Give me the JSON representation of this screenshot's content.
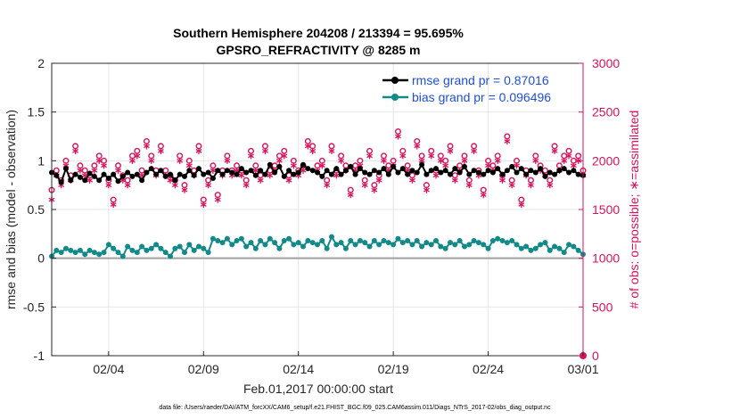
{
  "chart_data": {
    "type": "line",
    "title": "Southern Hemisphere 204208 / 213394 = 95.695%",
    "subtitle": "GPSRO_REFRACTIVITY @ 8285 m",
    "xlabel": "Feb.01,2017 00:00:00 start",
    "ylabel_left": "rmse and bias (model - observation)",
    "ylabel_right": "# of obs: o=possible; ∗=assimilated",
    "x_start_label": "02/01",
    "x_end_label": "03/01",
    "xlim_days": [
      0,
      28
    ],
    "ylim_left": [
      -1,
      2
    ],
    "ylim_right": [
      0,
      3000
    ],
    "x_tick_days": [
      3,
      8,
      13,
      18,
      23,
      28
    ],
    "x_tick_labels": [
      "02/04",
      "02/09",
      "02/14",
      "02/19",
      "02/24",
      "03/01"
    ],
    "y_left_ticks": [
      -1,
      -0.5,
      0,
      0.5,
      1,
      1.5,
      2
    ],
    "y_left_tick_labels": [
      "-1",
      "-0.5",
      "0",
      "0.5",
      "1",
      "1.5",
      "2"
    ],
    "y_right_ticks": [
      0,
      500,
      1000,
      1500,
      2000,
      2500,
      3000
    ],
    "y_right_tick_labels": [
      "0",
      "500",
      "1000",
      "1500",
      "2000",
      "2500",
      "3000"
    ],
    "grid": true,
    "legend_position": "top-right",
    "colors": {
      "rmse": "#000000",
      "bias": "#138a8a",
      "obs": "#d8125c",
      "zero_line": "#a0a0a0",
      "grid": "#e6e6e6"
    },
    "series": [
      {
        "name": "rmse grand pr = 0.87016",
        "axis": "left",
        "marker": "filled-circle",
        "x_days": [
          0,
          0.25,
          0.5,
          0.75,
          1,
          1.25,
          1.5,
          1.75,
          2,
          2.25,
          2.5,
          2.75,
          3,
          3.25,
          3.5,
          3.75,
          4,
          4.25,
          4.5,
          4.75,
          5,
          5.25,
          5.5,
          5.75,
          6,
          6.25,
          6.5,
          6.75,
          7,
          7.25,
          7.5,
          7.75,
          8,
          8.25,
          8.5,
          8.75,
          9,
          9.25,
          9.5,
          9.75,
          10,
          10.25,
          10.5,
          10.75,
          11,
          11.25,
          11.5,
          11.75,
          12,
          12.25,
          12.5,
          12.75,
          13,
          13.25,
          13.5,
          13.75,
          14,
          14.25,
          14.5,
          14.75,
          15,
          15.25,
          15.5,
          15.75,
          16,
          16.25,
          16.5,
          16.75,
          17,
          17.25,
          17.5,
          17.75,
          18,
          18.25,
          18.5,
          18.75,
          19,
          19.25,
          19.5,
          19.75,
          20,
          20.25,
          20.5,
          20.75,
          21,
          21.25,
          21.5,
          21.75,
          22,
          22.25,
          22.5,
          22.75,
          23,
          23.25,
          23.5,
          23.75,
          24,
          24.25,
          24.5,
          24.75,
          25,
          25.25,
          25.5,
          25.75,
          26,
          26.25,
          26.5,
          26.75,
          27,
          27.25,
          27.5,
          27.75,
          28
        ],
        "values": [
          0.88,
          0.85,
          0.78,
          0.92,
          0.8,
          0.86,
          0.83,
          0.8,
          0.87,
          0.84,
          0.8,
          0.86,
          0.82,
          0.86,
          0.79,
          0.84,
          0.88,
          0.84,
          0.86,
          0.8,
          0.88,
          0.92,
          0.86,
          0.9,
          0.84,
          0.86,
          0.8,
          0.86,
          0.84,
          0.9,
          0.85,
          0.92,
          0.86,
          0.88,
          0.82,
          0.9,
          0.86,
          0.9,
          0.88,
          0.86,
          0.92,
          0.88,
          0.9,
          0.85,
          0.9,
          0.86,
          0.96,
          0.88,
          0.94,
          0.84,
          0.9,
          0.86,
          0.88,
          0.96,
          0.92,
          0.9,
          0.88,
          0.84,
          0.9,
          0.86,
          0.92,
          0.86,
          0.9,
          0.94,
          0.86,
          0.92,
          0.88,
          0.86,
          0.9,
          0.88,
          0.92,
          0.86,
          0.94,
          0.88,
          0.92,
          0.86,
          0.9,
          0.88,
          0.96,
          0.86,
          0.9,
          0.92,
          0.88,
          0.9,
          0.86,
          0.92,
          0.88,
          0.94,
          0.86,
          0.9,
          0.88,
          0.86,
          0.9,
          0.88,
          0.92,
          0.86,
          0.9,
          0.94,
          0.88,
          0.92,
          0.86,
          0.9,
          0.88,
          0.92,
          0.84,
          0.88,
          0.86,
          0.9,
          0.92,
          0.88,
          0.9,
          0.86,
          0.85
        ]
      },
      {
        "name": "bias grand pr = 0.096496",
        "axis": "left",
        "marker": "filled-circle",
        "x_days": [
          0,
          0.25,
          0.5,
          0.75,
          1,
          1.25,
          1.5,
          1.75,
          2,
          2.25,
          2.5,
          2.75,
          3,
          3.25,
          3.5,
          3.75,
          4,
          4.25,
          4.5,
          4.75,
          5,
          5.25,
          5.5,
          5.75,
          6,
          6.25,
          6.5,
          6.75,
          7,
          7.25,
          7.5,
          7.75,
          8,
          8.25,
          8.5,
          8.75,
          9,
          9.25,
          9.5,
          9.75,
          10,
          10.25,
          10.5,
          10.75,
          11,
          11.25,
          11.5,
          11.75,
          12,
          12.25,
          12.5,
          12.75,
          13,
          13.25,
          13.5,
          13.75,
          14,
          14.25,
          14.5,
          14.75,
          15,
          15.25,
          15.5,
          15.75,
          16,
          16.25,
          16.5,
          16.75,
          17,
          17.25,
          17.5,
          17.75,
          18,
          18.25,
          18.5,
          18.75,
          19,
          19.25,
          19.5,
          19.75,
          20,
          20.25,
          20.5,
          20.75,
          21,
          21.25,
          21.5,
          21.75,
          22,
          22.25,
          22.5,
          22.75,
          23,
          23.25,
          23.5,
          23.75,
          24,
          24.25,
          24.5,
          24.75,
          25,
          25.25,
          25.5,
          25.75,
          26,
          26.25,
          26.5,
          26.75,
          27,
          27.25,
          27.5,
          27.75,
          28
        ],
        "values": [
          0.02,
          0.08,
          0.06,
          0.1,
          0.08,
          0.06,
          0.08,
          0.04,
          0.08,
          0.06,
          0.04,
          0.06,
          0.14,
          0.1,
          0.06,
          0.02,
          0.12,
          0.08,
          0.06,
          0.12,
          0.08,
          0.1,
          0.14,
          0.1,
          0.06,
          0.02,
          0.1,
          0.12,
          0.06,
          0.14,
          0.08,
          0.12,
          0.1,
          0.06,
          0.2,
          0.18,
          0.16,
          0.2,
          0.14,
          0.18,
          0.2,
          0.12,
          0.16,
          0.1,
          0.18,
          0.14,
          0.2,
          0.16,
          0.1,
          0.18,
          0.2,
          0.14,
          0.16,
          0.12,
          0.18,
          0.16,
          0.14,
          0.18,
          0.1,
          0.22,
          0.14,
          0.16,
          0.1,
          0.18,
          0.14,
          0.18,
          0.16,
          0.12,
          0.18,
          0.14,
          0.18,
          0.16,
          0.14,
          0.2,
          0.16,
          0.18,
          0.14,
          0.18,
          0.12,
          0.16,
          0.14,
          0.18,
          0.12,
          0.1,
          0.16,
          0.14,
          0.18,
          0.12,
          0.14,
          0.18,
          0.16,
          0.14,
          0.1,
          0.18,
          0.2,
          0.18,
          0.16,
          0.18,
          0.14,
          0.1,
          0.12,
          0.08,
          0.1,
          0.14,
          0.16,
          0.08,
          0.12,
          0.1,
          0.06,
          0.14,
          0.12,
          0.08,
          0.04
        ]
      },
      {
        "name": "possible",
        "axis": "right",
        "marker": "open-circle",
        "x_days": [
          0,
          0.25,
          0.5,
          0.75,
          1,
          1.25,
          1.5,
          1.75,
          2,
          2.25,
          2.5,
          2.75,
          3,
          3.25,
          3.5,
          3.75,
          4,
          4.25,
          4.5,
          4.75,
          5,
          5.25,
          5.5,
          5.75,
          6,
          6.25,
          6.5,
          6.75,
          7,
          7.25,
          7.5,
          7.75,
          8,
          8.25,
          8.5,
          8.75,
          9,
          9.25,
          9.5,
          9.75,
          10,
          10.25,
          10.5,
          10.75,
          11,
          11.25,
          11.5,
          11.75,
          12,
          12.25,
          12.5,
          12.75,
          13,
          13.25,
          13.5,
          13.75,
          14,
          14.25,
          14.5,
          14.75,
          15,
          15.25,
          15.5,
          15.75,
          16,
          16.25,
          16.5,
          16.75,
          17,
          17.25,
          17.5,
          17.75,
          18,
          18.25,
          18.5,
          18.75,
          19,
          19.25,
          19.5,
          19.75,
          20,
          20.25,
          20.5,
          20.75,
          21,
          21.25,
          21.5,
          21.75,
          22,
          22.25,
          22.5,
          22.75,
          23,
          23.25,
          23.5,
          23.75,
          24,
          24.25,
          24.5,
          24.75,
          25,
          25.25,
          25.5,
          25.75,
          26,
          26.25,
          26.5,
          26.75,
          27,
          27.25,
          27.5,
          27.75,
          28
        ],
        "values": [
          1700,
          1900,
          1800,
          2000,
          1850,
          2150,
          1950,
          1900,
          1850,
          1950,
          2050,
          2000,
          1800,
          1600,
          1950,
          1850,
          1800,
          2050,
          2100,
          1900,
          2200,
          2050,
          1900,
          2150,
          1900,
          1850,
          1800,
          2050,
          1750,
          2000,
          1900,
          2150,
          1600,
          1800,
          1950,
          1650,
          1900,
          2050,
          1900,
          1950,
          1900,
          1800,
          2100,
          1950,
          1850,
          2150,
          1900,
          1950,
          2050,
          2100,
          1850,
          2000,
          1900,
          1950,
          2200,
          2150,
          1950,
          2000,
          1800,
          2150,
          1900,
          2050,
          1950,
          1700,
          1950,
          2000,
          1800,
          2100,
          1750,
          1850,
          2050,
          1950,
          2000,
          2300,
          2100,
          1950,
          1850,
          2200,
          2050,
          1750,
          2100,
          1900,
          2050,
          2000,
          2150,
          1850,
          1950,
          2050,
          1800,
          2150,
          1900,
          1700,
          2000,
          1950,
          2050,
          1850,
          2250,
          1800,
          2000,
          1600,
          1900,
          1800,
          2050,
          1950,
          1900,
          1800,
          2150,
          1950,
          2050,
          2100,
          2000,
          2050,
          1900
        ]
      },
      {
        "name": "assimilated",
        "axis": "right",
        "marker": "asterisk",
        "x_days": [
          0,
          0.25,
          0.5,
          0.75,
          1,
          1.25,
          1.5,
          1.75,
          2,
          2.25,
          2.5,
          2.75,
          3,
          3.25,
          3.5,
          3.75,
          4,
          4.25,
          4.5,
          4.75,
          5,
          5.25,
          5.5,
          5.75,
          6,
          6.25,
          6.5,
          6.75,
          7,
          7.25,
          7.5,
          7.75,
          8,
          8.25,
          8.5,
          8.75,
          9,
          9.25,
          9.5,
          9.75,
          10,
          10.25,
          10.5,
          10.75,
          11,
          11.25,
          11.5,
          11.75,
          12,
          12.25,
          12.5,
          12.75,
          13,
          13.25,
          13.5,
          13.75,
          14,
          14.25,
          14.5,
          14.75,
          15,
          15.25,
          15.5,
          15.75,
          16,
          16.25,
          16.5,
          16.75,
          17,
          17.25,
          17.5,
          17.75,
          18,
          18.25,
          18.5,
          18.75,
          19,
          19.25,
          19.5,
          19.75,
          20,
          20.25,
          20.5,
          20.75,
          21,
          21.25,
          21.5,
          21.75,
          22,
          22.25,
          22.5,
          22.75,
          23,
          23.25,
          23.5,
          23.75,
          24,
          24.25,
          24.5,
          24.75,
          25,
          25.25,
          25.5,
          25.75,
          26,
          26.25,
          26.5,
          26.75,
          27,
          27.25,
          27.5,
          27.75,
          28
        ],
        "values": [
          1600,
          1850,
          1750,
          1950,
          1800,
          2100,
          1900,
          1850,
          1800,
          1900,
          2000,
          1950,
          1750,
          1550,
          1900,
          1800,
          1750,
          2000,
          2050,
          1850,
          2150,
          2000,
          1850,
          2100,
          1850,
          1800,
          1750,
          2000,
          1700,
          1950,
          1850,
          2100,
          1550,
          1750,
          1900,
          1600,
          1850,
          2000,
          1850,
          1900,
          1850,
          1750,
          2050,
          1900,
          1800,
          2100,
          1850,
          1900,
          2000,
          2050,
          1800,
          1950,
          1850,
          1900,
          2150,
          2100,
          1900,
          1950,
          1750,
          2100,
          1850,
          2000,
          1900,
          1650,
          1900,
          1950,
          1750,
          2050,
          1700,
          1800,
          2000,
          1900,
          1950,
          2250,
          2050,
          1900,
          1800,
          2150,
          2000,
          1700,
          2050,
          1850,
          2000,
          1950,
          2100,
          1800,
          1900,
          2000,
          1750,
          2100,
          1850,
          1650,
          1950,
          1900,
          2000,
          1800,
          2200,
          1750,
          1950,
          1550,
          1850,
          1750,
          2000,
          1900,
          1850,
          1750,
          2100,
          1900,
          2000,
          2050,
          1950,
          2000,
          1850
        ]
      }
    ]
  },
  "footer": {
    "data_file": "data file: /Users/raeder/DAI/ATM_forcXX/CAM6_setup/f.e21.FHIST_BGC.f09_025.CAM6assim.011/Diags_NTrS_2017-02/obs_diag_output.nc"
  }
}
